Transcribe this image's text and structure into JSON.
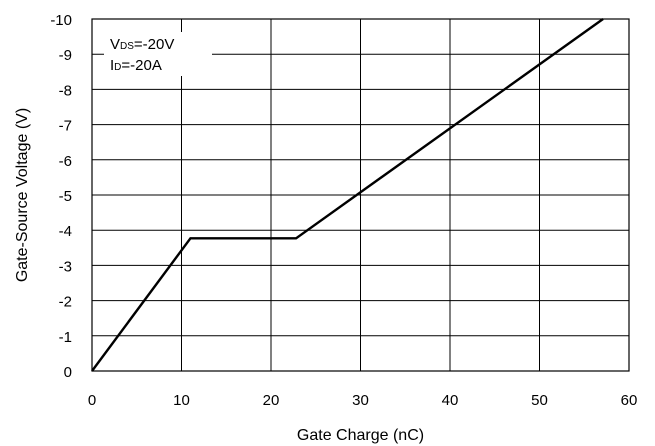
{
  "chart_data": {
    "type": "line",
    "title": "",
    "xlabel": "Gate Charge (nC)",
    "ylabel": "Gate-Source Voltage (V)",
    "xlim": [
      0,
      60
    ],
    "ylim": [
      0,
      -10
    ],
    "x_ticks": [
      0,
      10,
      20,
      30,
      40,
      50,
      60
    ],
    "y_ticks": [
      0,
      -1,
      -2,
      -3,
      -4,
      -5,
      -6,
      -7,
      -8,
      -9,
      -10
    ],
    "x_tick_labels": [
      "0",
      "10",
      "20",
      "30",
      "40",
      "50",
      "60"
    ],
    "y_tick_labels": [
      "0",
      "-1",
      "-2",
      "-3",
      "-4",
      "-5",
      "-6",
      "-7",
      "-8",
      "-9",
      "-10"
    ],
    "grid": true,
    "legend": "none",
    "series": [
      {
        "x": [
          0,
          11,
          22.8,
          57.1
        ],
        "y": [
          0,
          -3.77,
          -3.77,
          -10
        ],
        "color": "#000000"
      }
    ],
    "annotations": [
      {
        "main": "V",
        "sub": "DS",
        "rest": "=-20V"
      },
      {
        "main": "I",
        "sub": "D",
        "rest": "=-20A"
      }
    ]
  }
}
